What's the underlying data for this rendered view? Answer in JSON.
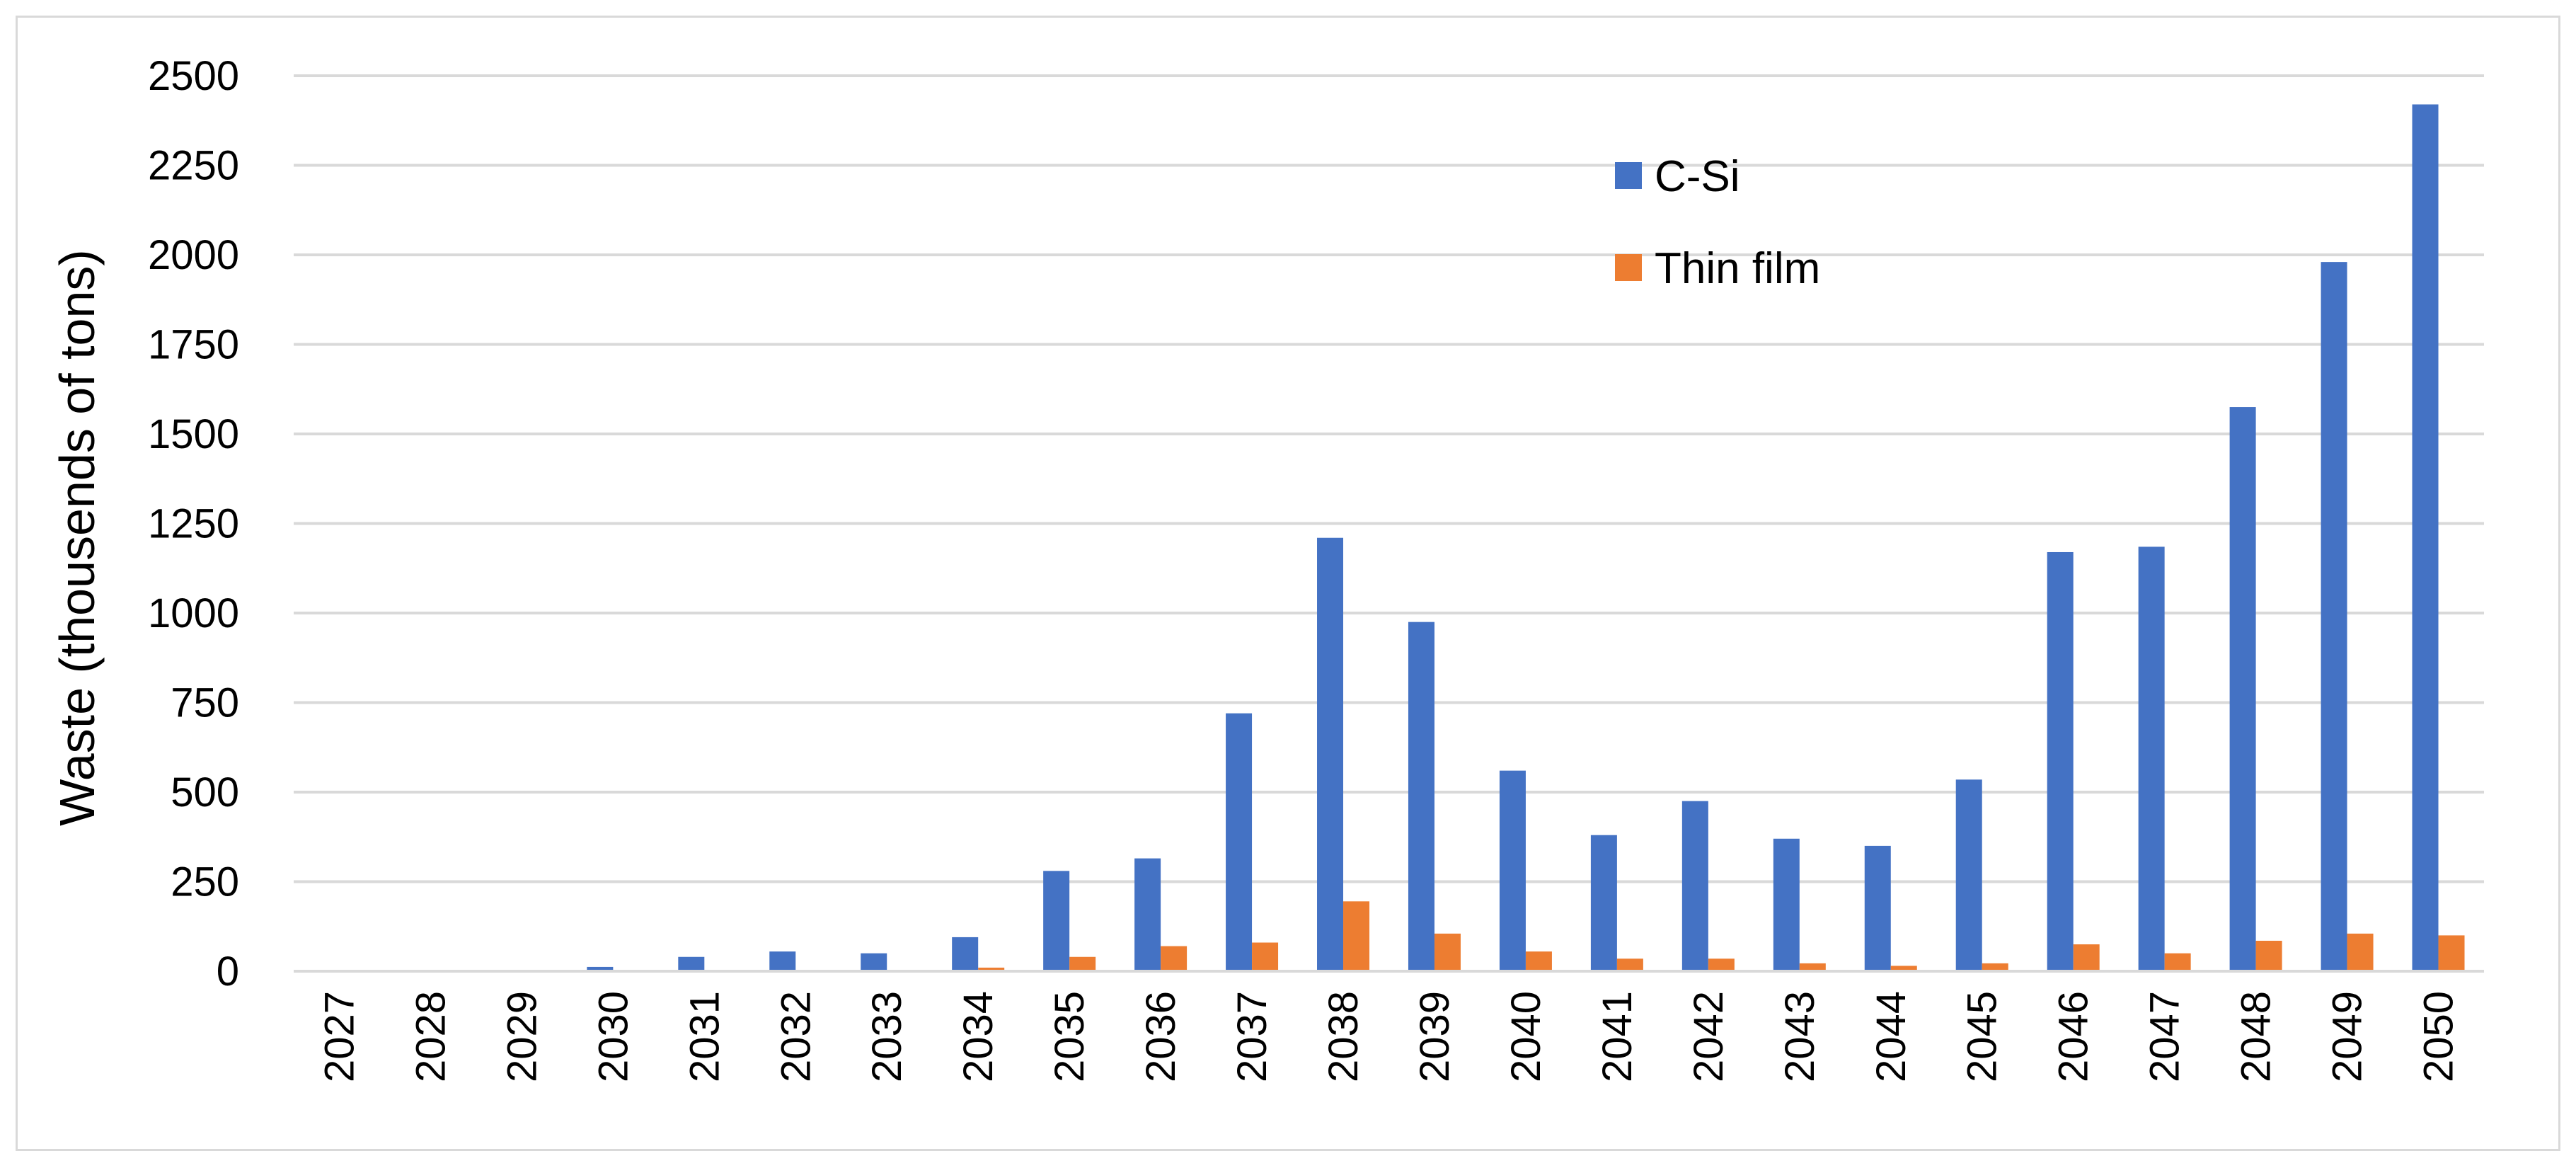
{
  "chart_data": {
    "type": "bar",
    "title": "",
    "xlabel": "",
    "ylabel": "Waste (thousends of tons)",
    "ylim": [
      0,
      2500
    ],
    "yticks": [
      0,
      250,
      500,
      750,
      1000,
      1250,
      1500,
      1750,
      2000,
      2250,
      2500
    ],
    "grid": true,
    "legend_position": "top-right",
    "categories": [
      "2027",
      "2028",
      "2029",
      "2030",
      "2031",
      "2032",
      "2033",
      "2034",
      "2035",
      "2036",
      "2037",
      "2038",
      "2039",
      "2040",
      "2041",
      "2042",
      "2043",
      "2044",
      "2045",
      "2046",
      "2047",
      "2048",
      "2049",
      "2050"
    ],
    "series": [
      {
        "name": "C-Si",
        "color": "#4472c4",
        "values": [
          0,
          0,
          0,
          12,
          40,
          55,
          50,
          95,
          280,
          315,
          720,
          1210,
          975,
          560,
          380,
          475,
          370,
          350,
          535,
          1170,
          1185,
          1575,
          1980,
          2420
        ]
      },
      {
        "name": "Thin film",
        "color": "#ed7d31",
        "values": [
          0,
          0,
          0,
          0,
          0,
          0,
          0,
          10,
          40,
          70,
          80,
          195,
          105,
          55,
          35,
          35,
          22,
          15,
          22,
          75,
          50,
          85,
          105,
          100
        ]
      }
    ]
  }
}
